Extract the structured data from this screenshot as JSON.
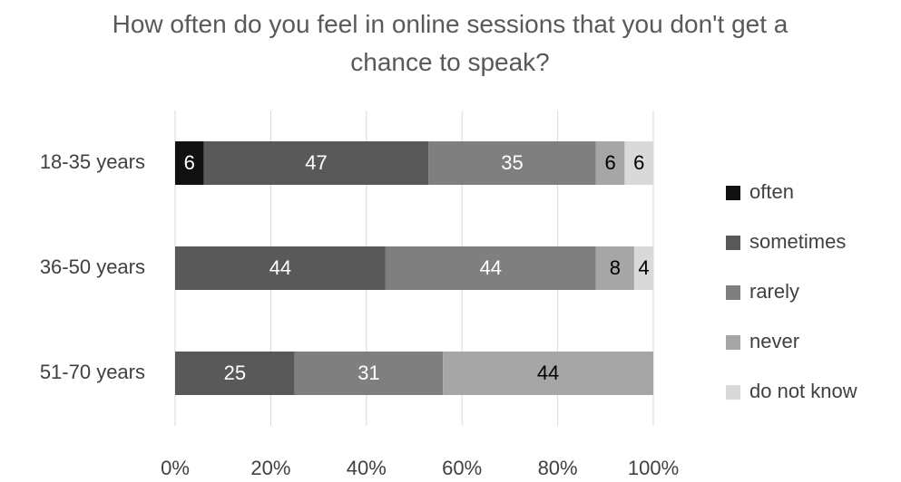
{
  "chart_data": {
    "type": "stacked_barh",
    "title": "How often do you feel in online sessions that you don't get a chance to speak?",
    "categories": [
      "18-35 years",
      "36-50 years",
      "51-70 years"
    ],
    "series": [
      {
        "name": "often",
        "color": "#111111",
        "values": [
          6,
          null,
          null
        ]
      },
      {
        "name": "sometimes",
        "color": "#595959",
        "values": [
          47,
          44,
          25
        ]
      },
      {
        "name": "rarely",
        "color": "#7f7f7f",
        "values": [
          35,
          44,
          31
        ]
      },
      {
        "name": "never",
        "color": "#a6a6a6",
        "values": [
          6,
          8,
          44
        ]
      },
      {
        "name": "do not know",
        "color": "#d9d9d9",
        "values": [
          6,
          4,
          null
        ]
      }
    ],
    "xlim": [
      0,
      100
    ],
    "xticks": [
      {
        "value": 0,
        "label": "0%"
      },
      {
        "value": 20,
        "label": "20%"
      },
      {
        "value": 40,
        "label": "40%"
      },
      {
        "value": 60,
        "label": "60%"
      },
      {
        "value": 80,
        "label": "80%"
      },
      {
        "value": 100,
        "label": "100%"
      }
    ],
    "grid": true,
    "legend": "right"
  }
}
